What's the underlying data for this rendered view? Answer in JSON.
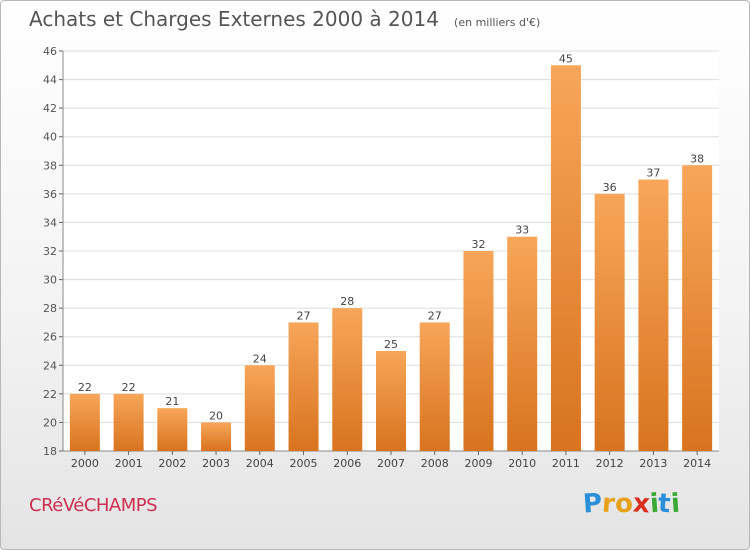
{
  "header": {
    "title": "Achats et Charges Externes 2000 à 2014",
    "subtitle": "(en milliers d'€)"
  },
  "footer": {
    "place": "CRéVéCHAMPS",
    "logo_letters": [
      "P",
      "r",
      "o",
      "x",
      "i",
      "t",
      "i"
    ]
  },
  "colors": {
    "bar_light": "#f7a65a",
    "bar_dark": "#d8731e",
    "logo_letters": [
      "#2a8fd6",
      "#e8a11c",
      "#e8a11c",
      "#d9301f",
      "#3aa934",
      "#2a8fd6",
      "#3aa934"
    ]
  },
  "chart_data": {
    "type": "bar",
    "categories": [
      "2000",
      "2001",
      "2002",
      "2003",
      "2004",
      "2005",
      "2006",
      "2007",
      "2008",
      "2009",
      "2010",
      "2011",
      "2012",
      "2013",
      "2014"
    ],
    "values": [
      22,
      22,
      21,
      20,
      24,
      27,
      28,
      25,
      27,
      32,
      33,
      45,
      36,
      37,
      38
    ],
    "title": "Achats et Charges Externes 2000 à 2014",
    "ylim": [
      18,
      46
    ],
    "yticks": [
      18,
      20,
      22,
      24,
      26,
      28,
      30,
      32,
      34,
      36,
      38,
      40,
      42,
      44,
      46
    ],
    "grid": true,
    "data_labels": true
  }
}
